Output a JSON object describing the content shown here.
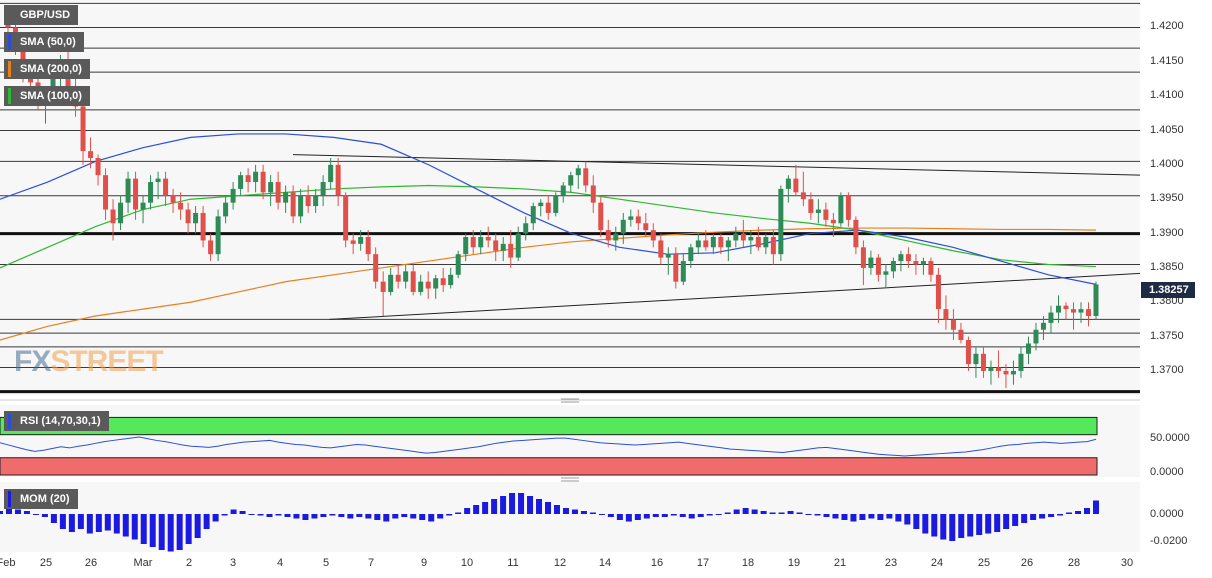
{
  "chart_data": {
    "type": "candlestick",
    "symbol": "GBP/USD",
    "last_price": "1.38257",
    "price_axis": {
      "ticks": [
        "1.4200",
        "1.4150",
        "1.4100",
        "1.4050",
        "1.4000",
        "1.3950",
        "1.3900",
        "1.3850",
        "1.3800",
        "1.3750",
        "1.3700"
      ],
      "range": [
        1.3665,
        1.424
      ]
    },
    "x_axis": {
      "labels": [
        "Feb",
        "25",
        "26",
        "Mar",
        "2",
        "3",
        "4",
        "5",
        "7",
        "9",
        "10",
        "11",
        "12",
        "14",
        "16",
        "17",
        "18",
        "19",
        "21",
        "23",
        "24",
        "25",
        "26",
        "28",
        "30"
      ]
    },
    "indicators": [
      {
        "name": "SMA (50,0)",
        "color": "#2a4fd6"
      },
      {
        "name": "SMA (200,0)",
        "color": "#e8801e"
      },
      {
        "name": "SMA (100,0)",
        "color": "#2fb82f"
      }
    ],
    "rsi": {
      "name": "RSI (14,70,30,1)",
      "ticks": [
        "50.0000",
        "0.0000"
      ],
      "overbought": 70,
      "oversold": 30,
      "color": "#2a4fd6"
    },
    "momentum": {
      "name": "MOM (20)",
      "ticks": [
        "0.0000",
        "-0.0200"
      ],
      "color": "#1a1ae0"
    },
    "candles": [
      [
        1.421,
        1.423,
        1.419,
        1.42
      ],
      [
        1.42,
        1.4215,
        1.416,
        1.417
      ],
      [
        1.417,
        1.4185,
        1.412,
        1.4135
      ],
      [
        1.4135,
        1.415,
        1.409,
        1.412
      ],
      [
        1.412,
        1.414,
        1.408,
        1.4095
      ],
      [
        1.4095,
        1.411,
        1.406,
        1.4105
      ],
      [
        1.4105,
        1.414,
        1.409,
        1.413
      ],
      [
        1.413,
        1.416,
        1.41,
        1.415
      ],
      [
        1.415,
        1.4165,
        1.41,
        1.411
      ],
      [
        1.411,
        1.4125,
        1.407,
        1.4085
      ],
      [
        1.4085,
        1.409,
        1.4,
        1.402
      ],
      [
        1.402,
        1.404,
        1.3995,
        1.401
      ],
      [
        1.401,
        1.4015,
        1.397,
        1.3985
      ],
      [
        1.3985,
        1.3995,
        1.392,
        1.3935
      ],
      [
        1.3935,
        1.395,
        1.389,
        1.3915
      ],
      [
        1.3915,
        1.3955,
        1.3905,
        1.3945
      ],
      [
        1.3945,
        1.399,
        1.393,
        1.398
      ],
      [
        1.398,
        1.399,
        1.392,
        1.3935
      ],
      [
        1.3935,
        1.3955,
        1.3915,
        1.3945
      ],
      [
        1.3945,
        1.3985,
        1.3935,
        1.3975
      ],
      [
        1.3975,
        1.399,
        1.395,
        1.398
      ],
      [
        1.398,
        1.399,
        1.394,
        1.3955
      ],
      [
        1.3955,
        1.3965,
        1.393,
        1.3945
      ],
      [
        1.3945,
        1.396,
        1.392,
        1.3935
      ],
      [
        1.3935,
        1.3945,
        1.39,
        1.3915
      ],
      [
        1.3915,
        1.394,
        1.39,
        1.393
      ],
      [
        1.393,
        1.394,
        1.388,
        1.389
      ],
      [
        1.389,
        1.39,
        1.386,
        1.387
      ],
      [
        1.387,
        1.3935,
        1.386,
        1.3925
      ],
      [
        1.3925,
        1.3955,
        1.3915,
        1.3945
      ],
      [
        1.3945,
        1.3975,
        1.3935,
        1.3965
      ],
      [
        1.3965,
        1.399,
        1.3955,
        1.3985
      ],
      [
        1.3985,
        1.3995,
        1.396,
        1.3975
      ],
      [
        1.3975,
        1.4,
        1.396,
        1.399
      ],
      [
        1.399,
        1.4,
        1.395,
        1.396
      ],
      [
        1.396,
        1.3985,
        1.394,
        1.3975
      ],
      [
        1.3975,
        1.399,
        1.3935,
        1.3945
      ],
      [
        1.3945,
        1.397,
        1.393,
        1.396
      ],
      [
        1.396,
        1.397,
        1.3915,
        1.3925
      ],
      [
        1.3925,
        1.3965,
        1.3915,
        1.3955
      ],
      [
        1.3955,
        1.397,
        1.393,
        1.394
      ],
      [
        1.394,
        1.3965,
        1.393,
        1.3955
      ],
      [
        1.3955,
        1.3985,
        1.394,
        1.3975
      ],
      [
        1.3975,
        1.401,
        1.3965,
        1.4
      ],
      [
        1.4,
        1.401,
        1.394,
        1.3955
      ],
      [
        1.3955,
        1.396,
        1.388,
        1.389
      ],
      [
        1.389,
        1.39,
        1.387,
        1.3885
      ],
      [
        1.3885,
        1.3905,
        1.3875,
        1.3895
      ],
      [
        1.3895,
        1.3905,
        1.386,
        1.387
      ],
      [
        1.387,
        1.388,
        1.382,
        1.383
      ],
      [
        1.383,
        1.3845,
        1.378,
        1.3815
      ],
      [
        1.3815,
        1.385,
        1.381,
        1.384
      ],
      [
        1.384,
        1.3855,
        1.382,
        1.383
      ],
      [
        1.383,
        1.3855,
        1.382,
        1.3845
      ],
      [
        1.3845,
        1.3855,
        1.381,
        1.3815
      ],
      [
        1.3815,
        1.384,
        1.381,
        1.383
      ],
      [
        1.383,
        1.3845,
        1.3805,
        1.382
      ],
      [
        1.382,
        1.384,
        1.3805,
        1.3835
      ],
      [
        1.3835,
        1.385,
        1.3815,
        1.3825
      ],
      [
        1.3825,
        1.385,
        1.382,
        1.384
      ],
      [
        1.384,
        1.3875,
        1.3835,
        1.387
      ],
      [
        1.387,
        1.39,
        1.386,
        1.3895
      ],
      [
        1.3895,
        1.3905,
        1.387,
        1.388
      ],
      [
        1.388,
        1.3905,
        1.387,
        1.3895
      ],
      [
        1.3895,
        1.391,
        1.388,
        1.389
      ],
      [
        1.389,
        1.39,
        1.386,
        1.3875
      ],
      [
        1.3875,
        1.3895,
        1.386,
        1.3885
      ],
      [
        1.3885,
        1.3905,
        1.385,
        1.3865
      ],
      [
        1.3865,
        1.391,
        1.386,
        1.39
      ],
      [
        1.39,
        1.3925,
        1.389,
        1.3915
      ],
      [
        1.3915,
        1.3945,
        1.3905,
        1.394
      ],
      [
        1.394,
        1.395,
        1.3925,
        1.3945
      ],
      [
        1.3945,
        1.3955,
        1.392,
        1.393
      ],
      [
        1.393,
        1.396,
        1.3925,
        1.3955
      ],
      [
        1.3955,
        1.3975,
        1.3945,
        1.397
      ],
      [
        1.397,
        1.399,
        1.396,
        1.3985
      ],
      [
        1.3985,
        1.4,
        1.3965,
        1.3995
      ],
      [
        1.3995,
        1.4005,
        1.396,
        1.397
      ],
      [
        1.397,
        1.3985,
        1.393,
        1.3945
      ],
      [
        1.3945,
        1.3955,
        1.3895,
        1.3905
      ],
      [
        1.3905,
        1.392,
        1.388,
        1.389
      ],
      [
        1.389,
        1.391,
        1.3875,
        1.39
      ],
      [
        1.39,
        1.393,
        1.3885,
        1.392
      ],
      [
        1.392,
        1.3935,
        1.391,
        1.3925
      ],
      [
        1.3925,
        1.3935,
        1.3905,
        1.3915
      ],
      [
        1.3915,
        1.393,
        1.3895,
        1.3905
      ],
      [
        1.3905,
        1.3915,
        1.388,
        1.389
      ],
      [
        1.389,
        1.39,
        1.3855,
        1.3865
      ],
      [
        1.3865,
        1.388,
        1.384,
        1.387
      ],
      [
        1.387,
        1.388,
        1.382,
        1.383
      ],
      [
        1.383,
        1.387,
        1.3825,
        1.386
      ],
      [
        1.386,
        1.3885,
        1.385,
        1.388
      ],
      [
        1.388,
        1.39,
        1.387,
        1.389
      ],
      [
        1.389,
        1.3905,
        1.3875,
        1.388
      ],
      [
        1.388,
        1.39,
        1.387,
        1.3895
      ],
      [
        1.3895,
        1.39,
        1.387,
        1.388
      ],
      [
        1.388,
        1.3895,
        1.386,
        1.389
      ],
      [
        1.389,
        1.391,
        1.388,
        1.39
      ],
      [
        1.39,
        1.392,
        1.388,
        1.389
      ],
      [
        1.389,
        1.3905,
        1.387,
        1.3895
      ],
      [
        1.3895,
        1.391,
        1.3875,
        1.388
      ],
      [
        1.388,
        1.39,
        1.387,
        1.3895
      ],
      [
        1.3895,
        1.3905,
        1.3855,
        1.387
      ],
      [
        1.387,
        1.397,
        1.386,
        1.3965
      ],
      [
        1.3965,
        1.3985,
        1.3945,
        1.398
      ],
      [
        1.398,
        1.4,
        1.3955,
        1.396
      ],
      [
        1.396,
        1.399,
        1.394,
        1.395
      ],
      [
        1.395,
        1.396,
        1.392,
        1.393
      ],
      [
        1.393,
        1.395,
        1.3915,
        1.3935
      ],
      [
        1.3935,
        1.3945,
        1.391,
        1.392
      ],
      [
        1.392,
        1.393,
        1.3895,
        1.3915
      ],
      [
        1.3915,
        1.396,
        1.391,
        1.3955
      ],
      [
        1.3955,
        1.396,
        1.391,
        1.392
      ],
      [
        1.392,
        1.3925,
        1.387,
        1.388
      ],
      [
        1.388,
        1.389,
        1.3825,
        1.385
      ],
      [
        1.385,
        1.3875,
        1.384,
        1.3865
      ],
      [
        1.3865,
        1.387,
        1.383,
        1.384
      ],
      [
        1.384,
        1.3855,
        1.382,
        1.3845
      ],
      [
        1.3845,
        1.3865,
        1.3835,
        1.386
      ],
      [
        1.386,
        1.3875,
        1.3845,
        1.387
      ],
      [
        1.387,
        1.388,
        1.385,
        1.386
      ],
      [
        1.386,
        1.387,
        1.384,
        1.3855
      ],
      [
        1.3855,
        1.3865,
        1.384,
        1.386
      ],
      [
        1.386,
        1.3865,
        1.383,
        1.384
      ],
      [
        1.384,
        1.385,
        1.377,
        1.379
      ],
      [
        1.379,
        1.381,
        1.376,
        1.3775
      ],
      [
        1.3775,
        1.379,
        1.3745,
        1.376
      ],
      [
        1.376,
        1.377,
        1.374,
        1.3745
      ],
      [
        1.3745,
        1.375,
        1.37,
        1.371
      ],
      [
        1.371,
        1.3735,
        1.369,
        1.3725
      ],
      [
        1.3725,
        1.3735,
        1.369,
        1.37
      ],
      [
        1.37,
        1.3715,
        1.368,
        1.3705
      ],
      [
        1.3705,
        1.373,
        1.369,
        1.37
      ],
      [
        1.37,
        1.371,
        1.3675,
        1.3695
      ],
      [
        1.3695,
        1.3715,
        1.368,
        1.37
      ],
      [
        1.37,
        1.3735,
        1.369,
        1.3725
      ],
      [
        1.3725,
        1.375,
        1.371,
        1.374
      ],
      [
        1.374,
        1.377,
        1.373,
        1.376
      ],
      [
        1.376,
        1.378,
        1.3745,
        1.377
      ],
      [
        1.377,
        1.3795,
        1.3755,
        1.3785
      ],
      [
        1.3785,
        1.381,
        1.377,
        1.3795
      ],
      [
        1.3795,
        1.38,
        1.3775,
        1.379
      ],
      [
        1.379,
        1.38,
        1.376,
        1.3785
      ],
      [
        1.3785,
        1.38,
        1.377,
        1.379
      ],
      [
        1.379,
        1.38,
        1.3765,
        1.378
      ],
      [
        1.378,
        1.383,
        1.3775,
        1.3826
      ]
    ],
    "sma50": [
      1.395,
      1.3975,
      1.4005,
      1.4025,
      1.404,
      1.4045,
      1.4045,
      1.404,
      1.403,
      1.4,
      1.3965,
      1.393,
      1.39,
      1.388,
      1.387,
      1.3872,
      1.3885,
      1.39,
      1.3905,
      1.3895,
      1.388,
      1.386,
      1.384,
      1.3826
    ],
    "sma100": [
      1.385,
      1.388,
      1.391,
      1.3935,
      1.395,
      1.3955,
      1.396,
      1.3965,
      1.3968,
      1.397,
      1.3968,
      1.3965,
      1.396,
      1.395,
      1.394,
      1.393,
      1.3922,
      1.3915,
      1.3905,
      1.389,
      1.3875,
      1.3862,
      1.3855,
      1.3852
    ],
    "sma200": [
      1.3745,
      1.3765,
      1.378,
      1.379,
      1.38,
      1.3815,
      1.383,
      1.384,
      1.385,
      1.386,
      1.387,
      1.388,
      1.3888,
      1.3893,
      1.3898,
      1.3902,
      1.3905,
      1.3907,
      1.3908,
      1.3908,
      1.3907,
      1.3906,
      1.3906,
      1.3905
    ],
    "trendlines": [
      {
        "from": [
          0.257,
          1.4015
        ],
        "to": [
          1.0,
          1.3985
        ]
      },
      {
        "from": [
          0.289,
          1.3775
        ],
        "to": [
          1.0,
          1.3842
        ]
      }
    ],
    "horizontal_levels": [
      1.4235,
      1.42,
      1.417,
      1.4135,
      1.408,
      1.405,
      1.4005,
      1.3955,
      1.39,
      1.3855,
      1.3775,
      1.3755,
      1.3735,
      1.3705,
      1.367
    ],
    "bold_levels": [
      1.39,
      1.367
    ],
    "rsi_values": [
      56,
      52,
      48,
      44,
      41,
      43,
      46,
      49,
      47,
      50,
      52,
      55,
      58,
      60,
      62,
      64,
      66,
      63,
      60,
      58,
      55,
      52,
      50,
      49,
      48,
      50,
      53,
      55,
      57,
      58,
      59,
      60,
      57,
      55,
      53,
      52,
      50,
      48,
      47,
      49,
      51,
      53,
      52,
      50,
      48,
      46,
      44,
      42,
      40,
      38,
      39,
      41,
      43,
      45,
      47,
      49,
      52,
      55,
      57,
      59,
      60,
      61,
      62,
      63,
      64,
      64,
      62,
      60,
      58,
      56,
      55,
      54,
      53,
      52,
      53,
      54,
      55,
      56,
      57,
      55,
      53,
      51,
      49,
      47,
      45,
      44,
      43,
      42,
      41,
      40,
      39,
      41,
      43,
      45,
      47,
      48,
      46,
      44,
      42,
      40,
      38,
      36,
      35,
      34,
      33,
      34,
      35,
      36,
      37,
      38,
      39,
      40,
      42,
      44,
      47,
      50,
      52,
      53,
      55,
      56,
      57,
      56,
      55,
      56,
      57,
      58,
      62
    ],
    "mom_values": [
      0.002,
      0.004,
      0.003,
      0.002,
      0.0,
      -0.002,
      -0.006,
      -0.01,
      -0.012,
      -0.01,
      -0.013,
      -0.012,
      -0.011,
      -0.013,
      -0.015,
      -0.017,
      -0.02,
      -0.022,
      -0.024,
      -0.025,
      -0.024,
      -0.02,
      -0.016,
      -0.01,
      -0.005,
      -0.001,
      0.003,
      0.002,
      0.0,
      -0.001,
      -0.002,
      -0.001,
      -0.002,
      -0.003,
      -0.004,
      -0.003,
      -0.002,
      -0.001,
      -0.002,
      -0.003,
      -0.002,
      -0.003,
      -0.004,
      -0.005,
      -0.003,
      -0.002,
      -0.003,
      -0.004,
      -0.005,
      -0.003,
      -0.001,
      0.001,
      0.004,
      0.006,
      0.008,
      0.01,
      0.012,
      0.014,
      0.014,
      0.012,
      0.01,
      0.008,
      0.006,
      0.004,
      0.003,
      0.002,
      0.001,
      0.0,
      -0.002,
      -0.004,
      -0.005,
      -0.004,
      -0.003,
      -0.002,
      -0.002,
      -0.001,
      -0.002,
      -0.003,
      -0.002,
      -0.001,
      0.0,
      0.001,
      0.003,
      0.004,
      0.003,
      0.002,
      0.001,
      0.001,
      0.002,
      0.001,
      0.0,
      -0.001,
      -0.002,
      -0.003,
      -0.004,
      -0.005,
      -0.004,
      -0.003,
      -0.004,
      -0.003,
      -0.005,
      -0.007,
      -0.01,
      -0.013,
      -0.015,
      -0.017,
      -0.018,
      -0.016,
      -0.015,
      -0.014,
      -0.013,
      -0.012,
      -0.01,
      -0.008,
      -0.006,
      -0.004,
      -0.003,
      -0.002,
      -0.001,
      0.001,
      0.002,
      0.004,
      0.009
    ]
  }
}
